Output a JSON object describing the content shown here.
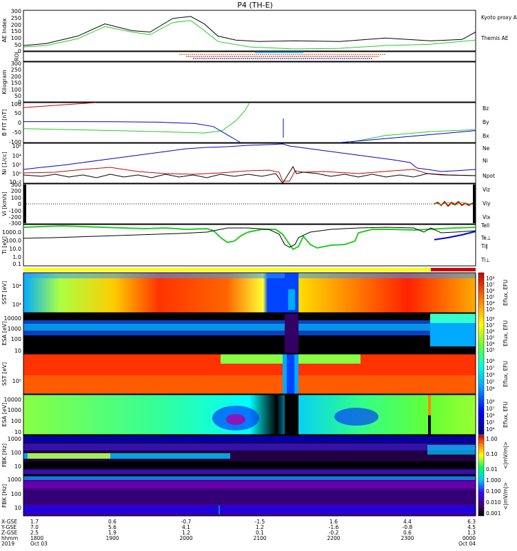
{
  "title": "P4 (TH-E)",
  "colors": {
    "kyoto": "#22cc22",
    "themis": "#000000",
    "red": "#cc0000",
    "green": "#22cc22",
    "blue": "#0000cc",
    "black": "#000000"
  },
  "chart_data": [
    {
      "type": "line",
      "id": "ae",
      "ylabel": "AE Index",
      "yticks": [
        "300",
        "250",
        "200",
        "150",
        "100",
        "50",
        "0"
      ],
      "ylim": [
        0,
        300
      ],
      "legend": [
        "Kyoto proxy AE",
        "Themis AE"
      ],
      "series": [
        {
          "name": "Themis AE",
          "x": [
            0,
            0.05,
            0.12,
            0.18,
            0.24,
            0.28,
            0.33,
            0.37,
            0.4,
            0.43,
            0.47,
            0.52,
            0.6,
            0.7,
            0.8,
            0.9,
            0.97,
            1
          ],
          "y": [
            40,
            55,
            110,
            200,
            150,
            140,
            240,
            255,
            200,
            110,
            80,
            70,
            75,
            70,
            95,
            75,
            85,
            140
          ]
        },
        {
          "name": "Kyoto proxy AE",
          "x": [
            0,
            0.05,
            0.12,
            0.18,
            0.24,
            0.28,
            0.33,
            0.37,
            0.4,
            0.43,
            0.5,
            0.6,
            0.7,
            0.8,
            0.9,
            1
          ],
          "y": [
            30,
            40,
            90,
            180,
            140,
            120,
            210,
            225,
            150,
            70,
            30,
            15,
            20,
            40,
            50,
            80
          ]
        }
      ]
    },
    {
      "type": "table",
      "id": "roi",
      "ylabel": "ROI"
    },
    {
      "type": "line",
      "id": "kp",
      "ylabel": "Kilogram",
      "yticks": [
        "300",
        "250",
        "200",
        "150",
        "100",
        "50",
        "0"
      ],
      "ylim": [
        0,
        300
      ]
    },
    {
      "type": "line",
      "id": "bfield",
      "ylabel": "B FIT [nT]",
      "yticks": [
        "100",
        "50",
        "0",
        "-50",
        "-100"
      ],
      "ylim": [
        -100,
        100
      ],
      "legend": [
        "Bz",
        "By",
        "Bx"
      ],
      "series": [
        {
          "name": "Bz",
          "x": [
            0,
            0.08,
            0.16
          ],
          "y": [
            75,
            88,
            100
          ]
        },
        {
          "name": "By",
          "x": [
            0,
            0.1,
            0.2,
            0.3,
            0.4,
            0.44,
            0.47,
            0.49,
            0.5
          ],
          "y": [
            -30,
            -35,
            -40,
            -45,
            -52,
            -40,
            10,
            60,
            100
          ]
        },
        {
          "name": "Bx",
          "x": [
            0,
            0.1,
            0.2,
            0.3,
            0.38,
            0.42,
            0.45,
            0.48
          ],
          "y": [
            5,
            5,
            4,
            2,
            -5,
            -20,
            -60,
            -100
          ]
        },
        {
          "name": "By",
          "x": [
            0.72,
            0.8,
            0.9,
            1.0
          ],
          "y": [
            -100,
            -65,
            -45,
            -35
          ]
        },
        {
          "name": "Bx",
          "x": [
            0.7,
            0.8,
            0.9,
            1.0
          ],
          "y": [
            -100,
            -80,
            -60,
            -40
          ]
        }
      ]
    },
    {
      "type": "line",
      "id": "density",
      "ylabel": "Ni [1/cc]",
      "yticks": [
        "10⁶",
        "10⁴",
        "10²",
        "10⁰",
        "10⁻²"
      ],
      "legend": [
        "Ne",
        "Ni",
        "Npot"
      ]
    },
    {
      "type": "line",
      "id": "velocity",
      "ylabel": "Vi [km/s]",
      "yticks": [
        "300",
        "200",
        "100",
        "0",
        "-100",
        "-200",
        "-300"
      ],
      "ylim": [
        -300,
        300
      ],
      "legend": [
        "Viz",
        "Viy",
        "Vix"
      ]
    },
    {
      "type": "line",
      "id": "temperature",
      "ylabel": "Ti [eV]",
      "yticks": [
        "1000.0",
        "100.0",
        "10.0",
        "1.0",
        "0.1"
      ],
      "legend": [
        "Tell",
        "Te⊥",
        "Ti∥",
        "Ti⊥"
      ]
    },
    {
      "type": "heatmap",
      "id": "sst_ion",
      "ylabel": "SST [eV]",
      "yticks": [
        "10⁴",
        "10⁴"
      ],
      "cbar": [
        "10⁸",
        "10⁷",
        "10⁶",
        "10⁵",
        "10⁴",
        "10³"
      ],
      "cbar_label": "Eflux, EFU"
    },
    {
      "type": "heatmap",
      "id": "esa_ion",
      "ylabel": "ESA [eV]",
      "yticks": [
        "10000",
        "1000",
        "100",
        "10"
      ],
      "cbar": [
        "10⁸",
        "10⁷",
        "10⁶",
        "10⁵",
        "10⁴",
        "10³"
      ],
      "cbar_label": "Eflux, EFU"
    },
    {
      "type": "heatmap",
      "id": "sst_elec",
      "ylabel": "SST [eV]",
      "yticks": [
        "10⁵"
      ],
      "cbar": [
        "10⁸",
        "10⁷",
        "10⁶",
        "10⁵",
        "10⁴"
      ],
      "cbar_label": "Eflux, EFU"
    },
    {
      "type": "heatmap",
      "id": "esa_elec",
      "ylabel": "ESA [eV]",
      "yticks": [
        "10000",
        "1000",
        "100",
        "10"
      ],
      "cbar": [
        "10⁸",
        "10⁷",
        "10⁶",
        "10⁵",
        "10⁴"
      ],
      "cbar_label": "Eflux, EFU"
    },
    {
      "type": "heatmap",
      "id": "fbk_e",
      "ylabel": "FBK [Hz]",
      "yticks": [
        "1000",
        "100",
        "10"
      ],
      "cbar": [
        "1.00",
        "0.10",
        "0.01"
      ],
      "cbar_label": "<|mV/m|>"
    },
    {
      "type": "heatmap",
      "id": "fbk_b",
      "ylabel": "FBK [Hz]",
      "yticks": [
        "1000",
        "100",
        "10"
      ],
      "cbar": [
        "1.000",
        "0.100",
        "0.010",
        "0.001"
      ],
      "cbar_label": "<|mV/m|>"
    }
  ],
  "footer": {
    "row_labels": [
      "X-GSE",
      "Y-GSE",
      "Z-GSE",
      "hhmm",
      "2019"
    ],
    "columns": [
      {
        "vals": [
          "1.7",
          "7.0",
          "2.5",
          "1800",
          "Oct 03"
        ]
      },
      {
        "vals": [
          "0.6",
          "5.6",
          "1.9",
          "1900",
          ""
        ]
      },
      {
        "vals": [
          "-0.7",
          "4.1",
          "1.2",
          "2000",
          ""
        ]
      },
      {
        "vals": [
          "-1.5",
          "1.2",
          "0.1",
          "2100",
          ""
        ]
      },
      {
        "vals": [
          "1.6",
          "-1.6",
          "-0.2",
          "2200",
          ""
        ]
      },
      {
        "vals": [
          "4.4",
          "-0.8",
          "0.6",
          "2300",
          ""
        ]
      },
      {
        "vals": [
          "6.3",
          "4.5",
          "1.3",
          "0000",
          "Oct 04"
        ]
      }
    ]
  }
}
